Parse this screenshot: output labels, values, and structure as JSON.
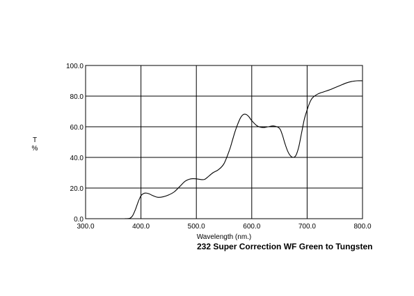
{
  "chart_data": {
    "type": "line",
    "title": "232 Super Correction WF Green to Tungsten",
    "xlabel": "Wavelength (nm.)",
    "ylabel_line1": "T",
    "ylabel_line2": "%",
    "xlim": [
      300,
      800
    ],
    "ylim": [
      0,
      100
    ],
    "grid": true,
    "xticks": [
      "300.0",
      "400.0",
      "500.0",
      "600.0",
      "700.0",
      "800.0"
    ],
    "yticks": [
      "0.0",
      "20.0",
      "40.0",
      "60.0",
      "80.0",
      "100.0"
    ],
    "series": [
      {
        "color": "#000000",
        "x": [
          370,
          380,
          385,
          390,
          395,
          400,
          405,
          410,
          415,
          420,
          430,
          440,
          450,
          460,
          470,
          480,
          490,
          500,
          510,
          515,
          520,
          530,
          540,
          550,
          560,
          565,
          570,
          575,
          580,
          585,
          590,
          595,
          600,
          610,
          620,
          630,
          640,
          650,
          655,
          660,
          665,
          670,
          675,
          680,
          685,
          690,
          695,
          700,
          705,
          710,
          720,
          730,
          740,
          750,
          760,
          770,
          780,
          790,
          800
        ],
        "y": [
          0,
          0.3,
          2,
          6,
          11,
          15,
          16.5,
          16.7,
          16.2,
          15.3,
          14,
          14.3,
          15.5,
          17.5,
          21,
          24.5,
          26,
          26,
          25.5,
          25.7,
          27,
          30,
          32,
          36,
          45,
          51,
          57,
          62,
          66,
          68,
          68,
          66.5,
          64,
          60.5,
          59.5,
          60,
          60.5,
          59,
          55,
          49,
          44,
          41,
          40,
          41.5,
          47,
          56,
          65,
          71,
          76,
          79,
          81.5,
          82.8,
          84,
          85.5,
          87,
          88.5,
          89.5,
          90,
          90
        ]
      }
    ]
  }
}
